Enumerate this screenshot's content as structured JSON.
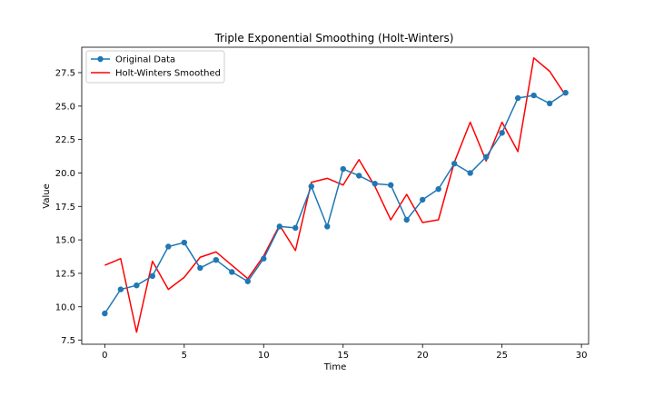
{
  "chart_data": {
    "type": "line",
    "title": "Triple Exponential Smoothing (Holt-Winters)",
    "xlabel": "Time",
    "ylabel": "Value",
    "xlim": [
      -1.45,
      30.45
    ],
    "ylim": [
      7.2,
      29.4
    ],
    "x_ticks": [
      0,
      5,
      10,
      15,
      20,
      25,
      30
    ],
    "y_ticks": [
      7.5,
      10.0,
      12.5,
      15.0,
      17.5,
      20.0,
      22.5,
      25.0,
      27.5
    ],
    "y_tick_labels": [
      "7.5",
      "10.0",
      "12.5",
      "15.0",
      "17.5",
      "20.0",
      "22.5",
      "25.0",
      "27.5"
    ],
    "grid": false,
    "legend_position": "upper left",
    "x": [
      0,
      1,
      2,
      3,
      4,
      5,
      6,
      7,
      8,
      9,
      10,
      11,
      12,
      13,
      14,
      15,
      16,
      17,
      18,
      19,
      20,
      21,
      22,
      23,
      24,
      25,
      26,
      27,
      28,
      29
    ],
    "series": [
      {
        "name": "Original Data",
        "color": "#1f77b4",
        "marker": "circle",
        "values": [
          9.5,
          11.3,
          11.6,
          12.3,
          14.5,
          14.8,
          12.9,
          13.5,
          12.6,
          11.9,
          13.6,
          16.0,
          15.9,
          19.0,
          16.0,
          20.3,
          19.8,
          19.2,
          19.1,
          16.5,
          18.0,
          18.8,
          20.7,
          20.0,
          21.2,
          23.0,
          25.6,
          25.8,
          25.2,
          26.0
        ]
      },
      {
        "name": "Holt-Winters Smoothed",
        "color": "#ff0000",
        "marker": "none",
        "values": [
          13.1,
          13.6,
          8.1,
          13.4,
          11.3,
          12.2,
          13.7,
          14.1,
          13.1,
          12.1,
          13.8,
          16.1,
          14.2,
          19.3,
          19.6,
          19.1,
          21.0,
          19.0,
          16.5,
          18.4,
          16.3,
          16.5,
          20.8,
          23.8,
          20.9,
          23.8,
          21.6,
          28.6,
          27.6,
          25.8
        ]
      }
    ]
  }
}
